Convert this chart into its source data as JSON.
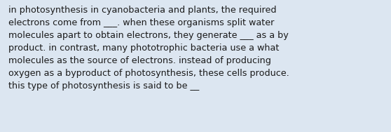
{
  "text": "in photosynthesis in cyanobacteria and plants, the required\nelectrons come from ___. when these organisms split water\nmolecules apart to obtain electrons, they generate ___ as a by\nproduct. in contrast, many phototrophic bacteria use a what\nmolecules as the source of electrons. instead of producing\noxygen as a byproduct of photosynthesis, these cells produce.\nthis type of photosynthesis is said to be __",
  "background_color": "#dce6f1",
  "text_color": "#1a1a1a",
  "font_size": 9.2,
  "fig_width": 5.58,
  "fig_height": 1.88,
  "dpi": 100
}
